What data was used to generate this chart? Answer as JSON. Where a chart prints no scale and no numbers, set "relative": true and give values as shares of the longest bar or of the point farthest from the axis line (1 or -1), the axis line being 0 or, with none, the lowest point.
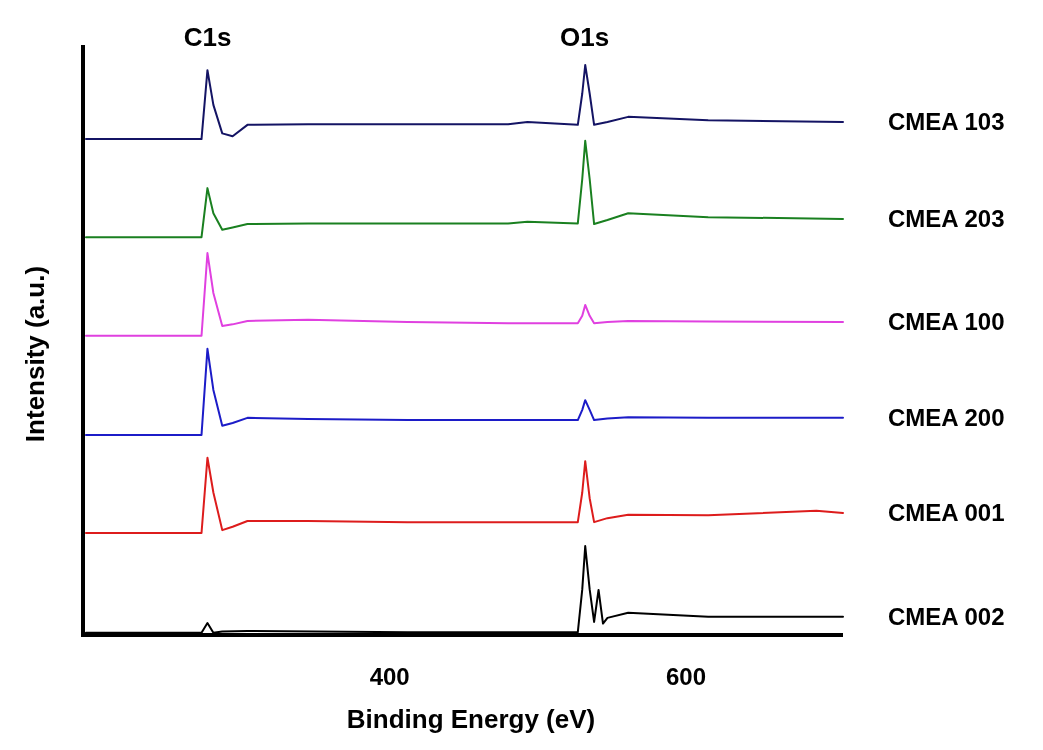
{
  "chart_data": {
    "type": "line",
    "relative": true,
    "xlabel": "Binding Energy (eV)",
    "ylabel": "Intensity (a.u.)",
    "xlim": [
      193,
      706
    ],
    "xticks": [
      400,
      600
    ],
    "grid": false,
    "legend": false,
    "marker": "none",
    "line_style": "solid",
    "annotations": [
      "C1s",
      "O1s"
    ],
    "series": [
      {
        "name": "CMEA 103",
        "color": "#141464",
        "x": [
          195,
          273,
          277,
          281,
          287,
          294,
          304,
          345,
          412,
          480,
          493,
          527,
          530,
          532,
          535,
          538,
          547,
          561,
          615,
          706
        ],
        "values": [
          0.87,
          0.87,
          0.991,
          0.93,
          0.88,
          0.875,
          0.895,
          0.896,
          0.896,
          0.896,
          0.9,
          0.895,
          0.95,
          1.0,
          0.95,
          0.895,
          0.9,
          0.909,
          0.903,
          0.9
        ]
      },
      {
        "name": "CMEA 203",
        "color": "#1a8020",
        "x": [
          195,
          273,
          277,
          281,
          287,
          294,
          304,
          345,
          412,
          480,
          493,
          527,
          530,
          532,
          535,
          538,
          547,
          561,
          615,
          706
        ],
        "values": [
          0.698,
          0.698,
          0.784,
          0.74,
          0.711,
          0.715,
          0.721,
          0.722,
          0.722,
          0.722,
          0.725,
          0.722,
          0.8,
          0.867,
          0.8,
          0.721,
          0.728,
          0.74,
          0.733,
          0.73
        ]
      },
      {
        "name": "CMEA 100",
        "color": "#e040e0",
        "x": [
          195,
          273,
          277,
          281,
          287,
          294,
          304,
          345,
          412,
          480,
          527,
          530,
          532,
          535,
          538,
          547,
          561,
          615,
          706
        ],
        "values": [
          0.525,
          0.525,
          0.67,
          0.6,
          0.542,
          0.545,
          0.551,
          0.553,
          0.549,
          0.547,
          0.547,
          0.56,
          0.579,
          0.56,
          0.547,
          0.549,
          0.551,
          0.55,
          0.549
        ]
      },
      {
        "name": "CMEA 200",
        "color": "#1c1cc8",
        "x": [
          195,
          273,
          277,
          281,
          287,
          294,
          304,
          345,
          412,
          480,
          527,
          530,
          532,
          535,
          538,
          547,
          561,
          615,
          706
        ],
        "values": [
          0.351,
          0.351,
          0.502,
          0.43,
          0.367,
          0.372,
          0.381,
          0.379,
          0.377,
          0.377,
          0.377,
          0.395,
          0.412,
          0.395,
          0.377,
          0.38,
          0.382,
          0.381,
          0.381
        ]
      },
      {
        "name": "CMEA 001",
        "color": "#dd1c1c",
        "x": [
          195,
          273,
          277,
          281,
          287,
          294,
          304,
          345,
          412,
          480,
          527,
          530,
          532,
          535,
          538,
          547,
          561,
          615,
          688,
          706
        ],
        "values": [
          0.179,
          0.179,
          0.311,
          0.25,
          0.184,
          0.19,
          0.2,
          0.2,
          0.198,
          0.198,
          0.198,
          0.25,
          0.305,
          0.24,
          0.198,
          0.205,
          0.211,
          0.21,
          0.218,
          0.214
        ]
      },
      {
        "name": "CMEA 002",
        "color": "#000000",
        "x": [
          195,
          273,
          277,
          281,
          287,
          304,
          412,
          480,
          527,
          530,
          532,
          535,
          538,
          541,
          544,
          547,
          561,
          615,
          706
        ],
        "values": [
          0.004,
          0.004,
          0.021,
          0.004,
          0.006,
          0.007,
          0.005,
          0.005,
          0.005,
          0.08,
          0.156,
          0.08,
          0.023,
          0.079,
          0.02,
          0.03,
          0.039,
          0.032,
          0.032
        ]
      }
    ]
  }
}
